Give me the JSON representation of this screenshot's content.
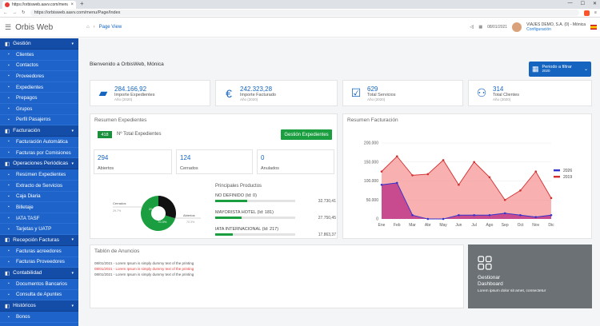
{
  "browser": {
    "tab_title": "https://orbisweb.aavv.com/menu",
    "tab_close": "×",
    "new_tab": "+",
    "url": "https://orbisweb.aavv.com/menu/Page/Index",
    "win_min": "—",
    "win_max": "☐",
    "win_close": "✕"
  },
  "header": {
    "app_title": "Orbis Web",
    "breadcrumb": "Page View",
    "date": "08/01/2021",
    "company": "VIAJES DEMO, S.A. (0) - Mónica",
    "config": "Configuración"
  },
  "sidebar": {
    "sections": [
      {
        "label": "Gestión",
        "items": [
          "Clientes",
          "Contactos",
          "Proveedores",
          "Expedientes",
          "Prepagos",
          "Grupos",
          "Perfil Pasajeros"
        ]
      },
      {
        "label": "Facturación",
        "items": [
          "Facturación Automática",
          "Facturas por Comisiones"
        ]
      },
      {
        "label": "Operaciones Periódicas",
        "items": [
          "Resúmen Expedientes",
          "Extracto de Servicios",
          "Caja Diaria",
          "Billetaje",
          "IATA TASF",
          "Tarjetas y UATP"
        ]
      },
      {
        "label": "Recepción Facturas",
        "items": [
          "Facturas acreedores",
          "Facturas Proveedores"
        ]
      },
      {
        "label": "Contabilidad",
        "items": [
          "Documentos Bancarios",
          "Consulta de Apuntes"
        ]
      },
      {
        "label": "Históricos",
        "items": [
          "Bonos"
        ]
      }
    ]
  },
  "main": {
    "welcome": "Bienvenido a OrbisWeb, Mónica",
    "periodo_label": "Periodo a filtrar",
    "periodo_year": "2020",
    "kpis": [
      {
        "icon": "folder-open-icon",
        "value": "284.166,92",
        "label": "Importe Expedientes",
        "year": "Año (2020)"
      },
      {
        "icon": "euro-icon",
        "value": "242.323,28",
        "label": "Importe Facturado",
        "year": "Año (2020)"
      },
      {
        "icon": "service-icon",
        "value": "629",
        "label": "Total Servicios",
        "year": "Año (2020)"
      },
      {
        "icon": "clients-icon",
        "value": "314",
        "label": "Total Clientes",
        "year": "Año (2020)"
      }
    ],
    "resumen": {
      "title": "Resumen Expedientes",
      "total": "418",
      "total_label": "Nº Total Expedientes",
      "button": "Gestión Expedientes",
      "abiertos_value": "294",
      "abiertos_label": "Abiertos",
      "cerrados_value": "124",
      "cerrados_label": "Cerrados",
      "anulados_value": "0",
      "anulados_label": "Anulados",
      "donut_cerrados_label": "Cerrados",
      "donut_cerrados_pct": "29.7%",
      "donut_abiertos_label": "Abiertos",
      "donut_abiertos_pct": "70.3%",
      "cerrados_fraction": 0.297
    },
    "productos": {
      "title": "Principales Productos",
      "items": [
        {
          "name": "NO DEFINIDO (Id: 0)",
          "value": "32.730,41",
          "fraction": 0.4
        },
        {
          "name": "MAYORISTA HOTEL (Id: 181)",
          "value": "27.750,45",
          "fraction": 0.33
        },
        {
          "name": "IATA INTERNACIONAL (Id: 217)",
          "value": "17.863,37",
          "fraction": 0.22
        }
      ]
    },
    "facturacion_title": "Resumen Facturación",
    "anuncios": {
      "title": "Tablón de Anuncios",
      "lines": [
        {
          "text": "08/01/2021 - Lorem Ipsum is simply dummy text of the printing",
          "red": false
        },
        {
          "text": "08/01/2021 - Lorem Ipsum is simply dummy text of the printing",
          "red": true
        },
        {
          "text": "08/01/2021 - Lorem Ipsum is simply dummy text of the printing",
          "red": false
        }
      ]
    },
    "dashboard": {
      "title_line1": "Gestionar",
      "title_line2": "Dashboard",
      "desc": "Lorem ipsum dolor sit amet, consectetur"
    }
  },
  "colors": {
    "accent": "#1565c0",
    "sidebar": "#1d63c9",
    "green": "#1a9e3f",
    "s2020": "#e53935",
    "s2026": "#3333cc"
  },
  "chart_data": {
    "type": "area",
    "categories": [
      "Ene",
      "Feb",
      "Mar",
      "Abr",
      "May",
      "Jun",
      "Jul",
      "Ago",
      "Sep",
      "Oct",
      "Nov",
      "Dic"
    ],
    "series": [
      {
        "name": "2026",
        "values": [
          90000,
          95000,
          10000,
          0,
          0,
          10000,
          10000,
          10000,
          15000,
          10000,
          5000,
          10000
        ]
      },
      {
        "name": "2019",
        "values": [
          125000,
          165000,
          115000,
          118000,
          155000,
          90000,
          150000,
          110000,
          50000,
          75000,
          125000,
          55000
        ]
      }
    ],
    "ylim": [
      0,
      200000
    ],
    "yticks": [
      "200.000",
      "150.000",
      "100.000",
      "50.000",
      "0"
    ],
    "legend": "top-right",
    "grid": true
  }
}
